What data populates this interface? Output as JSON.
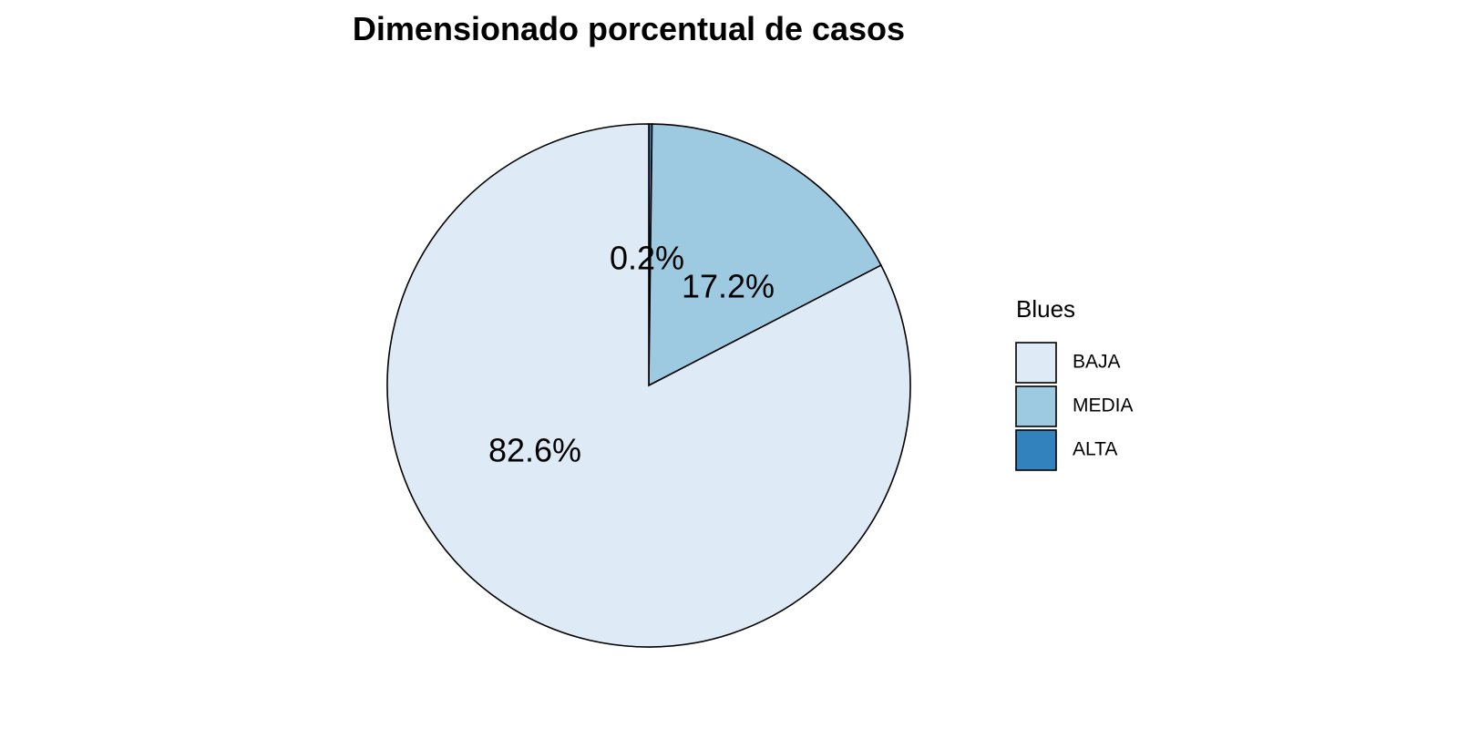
{
  "chart_data": {
    "type": "pie",
    "title": "Dimensionado porcentual de casos",
    "legend_title": "Blues",
    "legend_position": "right",
    "categories": [
      "BAJA",
      "MEDIA",
      "ALTA"
    ],
    "values": [
      82.6,
      17.2,
      0.2
    ],
    "labels": [
      "82.6%",
      "17.2%",
      "0.2%"
    ],
    "colors": [
      "#deebf7",
      "#9ecae1",
      "#3182bd"
    ]
  }
}
